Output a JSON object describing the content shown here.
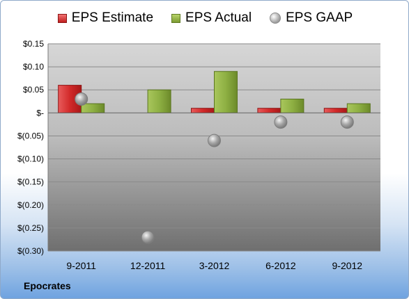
{
  "legend": {
    "estimate_label": "EPS Estimate",
    "actual_label": "EPS Actual",
    "gaap_label": "EPS GAAP"
  },
  "company": "Epocrates",
  "colors": {
    "estimate": "#cc2a2a",
    "actual": "#8db041",
    "gaap": "#a6a6a6"
  },
  "chart_data": {
    "type": "bar",
    "categories": [
      "9-2011",
      "12-2011",
      "3-2012",
      "6-2012",
      "9-2012"
    ],
    "series": [
      {
        "name": "EPS Estimate",
        "kind": "bar",
        "values": [
          0.06,
          null,
          0.01,
          0.01,
          0.01
        ]
      },
      {
        "name": "EPS Actual",
        "kind": "bar",
        "values": [
          0.02,
          0.05,
          0.09,
          0.03,
          0.02
        ]
      },
      {
        "name": "EPS GAAP",
        "kind": "scatter",
        "values": [
          0.03,
          -0.27,
          -0.06,
          -0.02,
          -0.02
        ]
      }
    ],
    "ylim": [
      -0.3,
      0.15
    ],
    "yticks": [
      0.15,
      0.1,
      0.05,
      0,
      -0.05,
      -0.1,
      -0.15,
      -0.2,
      -0.25,
      -0.3
    ],
    "ytick_labels": [
      "$0.15",
      "$0.10",
      "$0.05",
      "$-",
      "$(0.05)",
      "$(0.10)",
      "$(0.15)",
      "$(0.20)",
      "$(0.25)",
      "$(0.30)"
    ],
    "legend_position": "top",
    "grid": true
  }
}
